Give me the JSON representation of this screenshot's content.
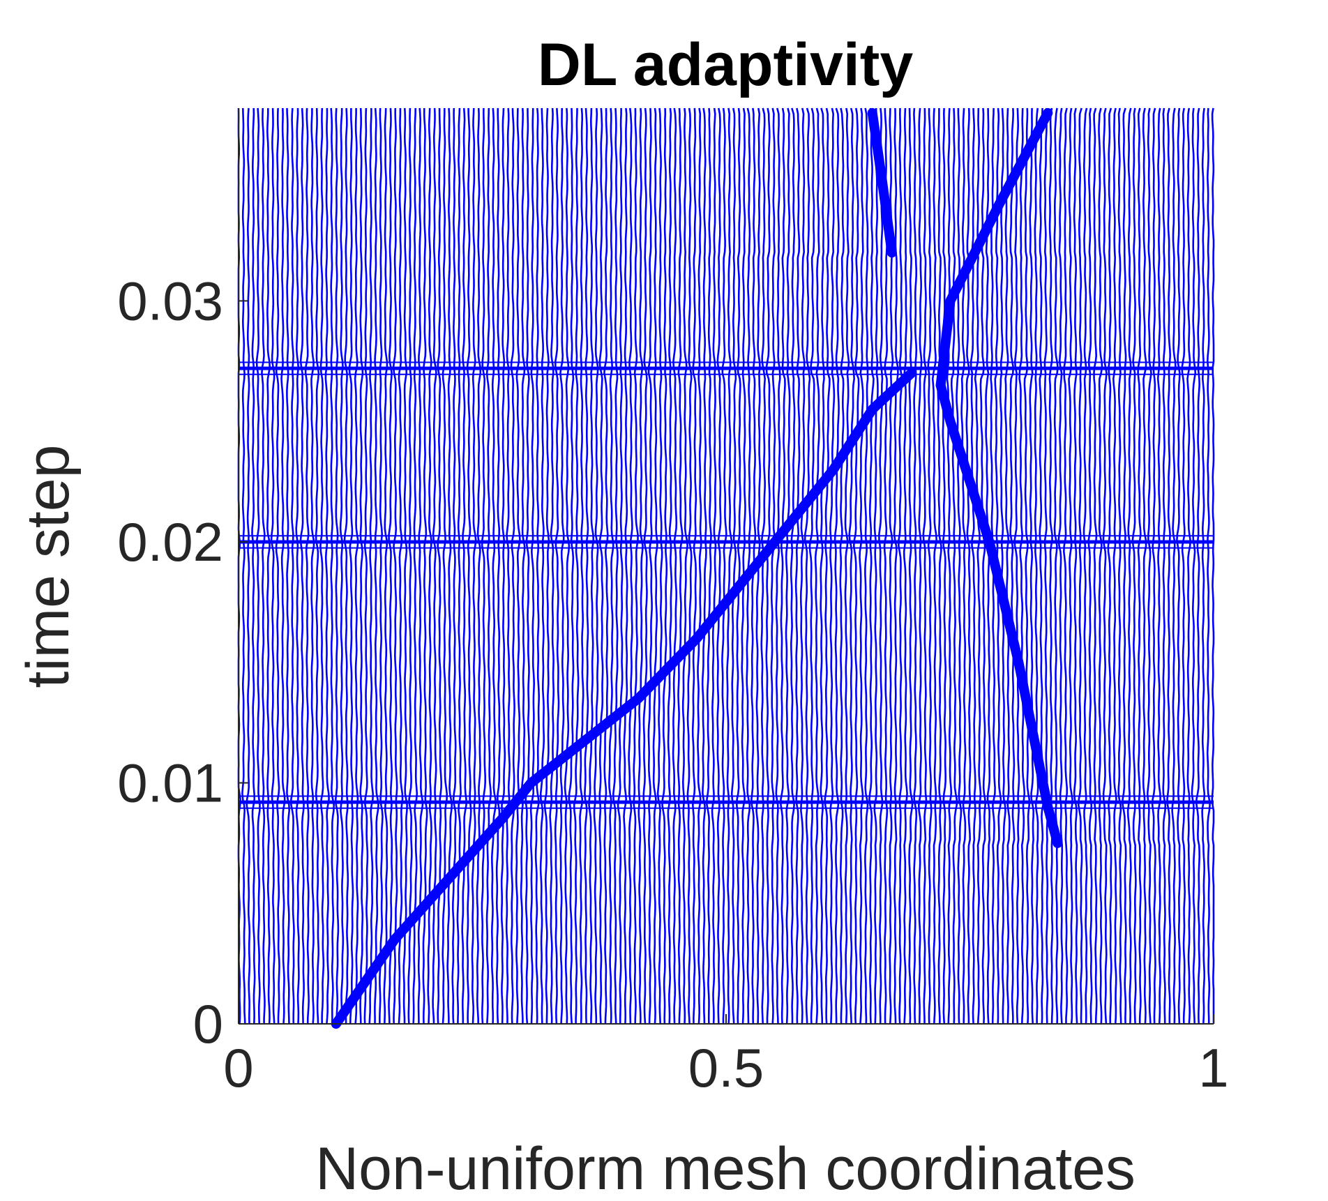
{
  "chart_data": {
    "type": "line",
    "title": "DL adaptivity",
    "xlabel": "Non-uniform mesh coordinates",
    "ylabel": "time step",
    "xlim": [
      0,
      1
    ],
    "ylim": [
      0,
      0.038
    ],
    "xticks": [
      0,
      0.5,
      1
    ],
    "xtick_labels": [
      "0",
      "0.5",
      "1"
    ],
    "yticks": [
      0,
      0.01,
      0.02,
      0.03
    ],
    "ytick_labels": [
      "0",
      "0.01",
      "0.02",
      "0.03"
    ],
    "grid": false,
    "legend": "none",
    "series_color": "#0000ff",
    "node_count": 200,
    "time_samples": 160,
    "shocks": [
      {
        "t": [
          0,
          0.0035,
          0.0085,
          0.01,
          0.0135,
          0.016,
          0.02,
          0.023,
          0.0255,
          0.027
        ],
        "x": [
          0.1,
          0.16,
          0.27,
          0.3,
          0.41,
          0.47,
          0.55,
          0.61,
          0.65,
          0.69
        ]
      },
      {
        "t": [
          0.0265,
          0.03,
          0.034,
          0.0378
        ],
        "x": [
          0.72,
          0.73,
          0.78,
          0.83
        ]
      },
      {
        "t": [
          0.0075,
          0.009,
          0.015,
          0.02,
          0.025,
          0.0265
        ],
        "x": [
          0.84,
          0.83,
          0.8,
          0.77,
          0.73,
          0.72
        ]
      },
      {
        "t": [
          0.032,
          0.035,
          0.0378
        ],
        "x": [
          0.67,
          0.66,
          0.65
        ]
      }
    ],
    "disturbed_times": [
      0.0092,
      0.02,
      0.0272
    ]
  }
}
